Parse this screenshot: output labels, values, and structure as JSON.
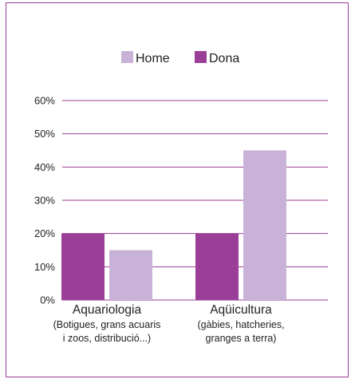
{
  "chart_data": {
    "type": "bar",
    "categories": [
      {
        "label": "Aquariologia",
        "sublabel_lines": [
          "(Botigues, grans acuaris",
          "i zoos, distribució...)"
        ]
      },
      {
        "label": "Aqüicultura",
        "sublabel_lines": [
          "(gàbies, hatcheries,",
          "granges a terra)"
        ]
      }
    ],
    "series": [
      {
        "name": "Dona",
        "color": "#9b3e97",
        "values": [
          20,
          20
        ]
      },
      {
        "name": "Home",
        "color": "#c8b2d8",
        "values": [
          15,
          45
        ]
      }
    ],
    "legend_order": [
      "Home",
      "Dona"
    ],
    "legend_position": "top-center",
    "y_ticks": [
      "0%",
      "10%",
      "20%",
      "30%",
      "40%",
      "50%",
      "60%"
    ],
    "ylim": [
      0,
      60
    ],
    "grid": true,
    "grid_color": "#9b3e97"
  }
}
